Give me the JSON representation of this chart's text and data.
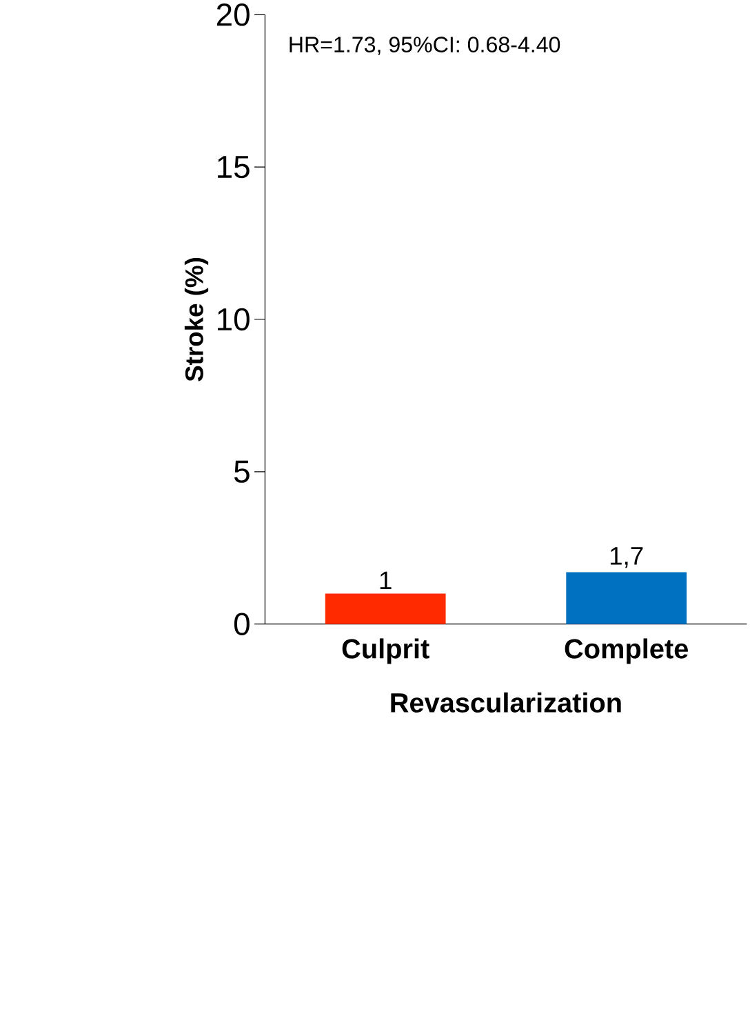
{
  "chart_data": {
    "type": "bar",
    "categories": [
      "Culprit",
      "Complete"
    ],
    "values": [
      1,
      1.7
    ],
    "colors": [
      "#ff2a00",
      "#0070c0"
    ],
    "value_labels": [
      "1",
      "1,7"
    ],
    "xlabel": "Revascularization",
    "ylabel": "Stroke (%)",
    "ylim": [
      0,
      20
    ],
    "yticks": [
      0,
      5,
      10,
      15,
      20
    ],
    "annotations": [
      "HR=1.73, 95%CI: 0.68-4.40"
    ]
  }
}
